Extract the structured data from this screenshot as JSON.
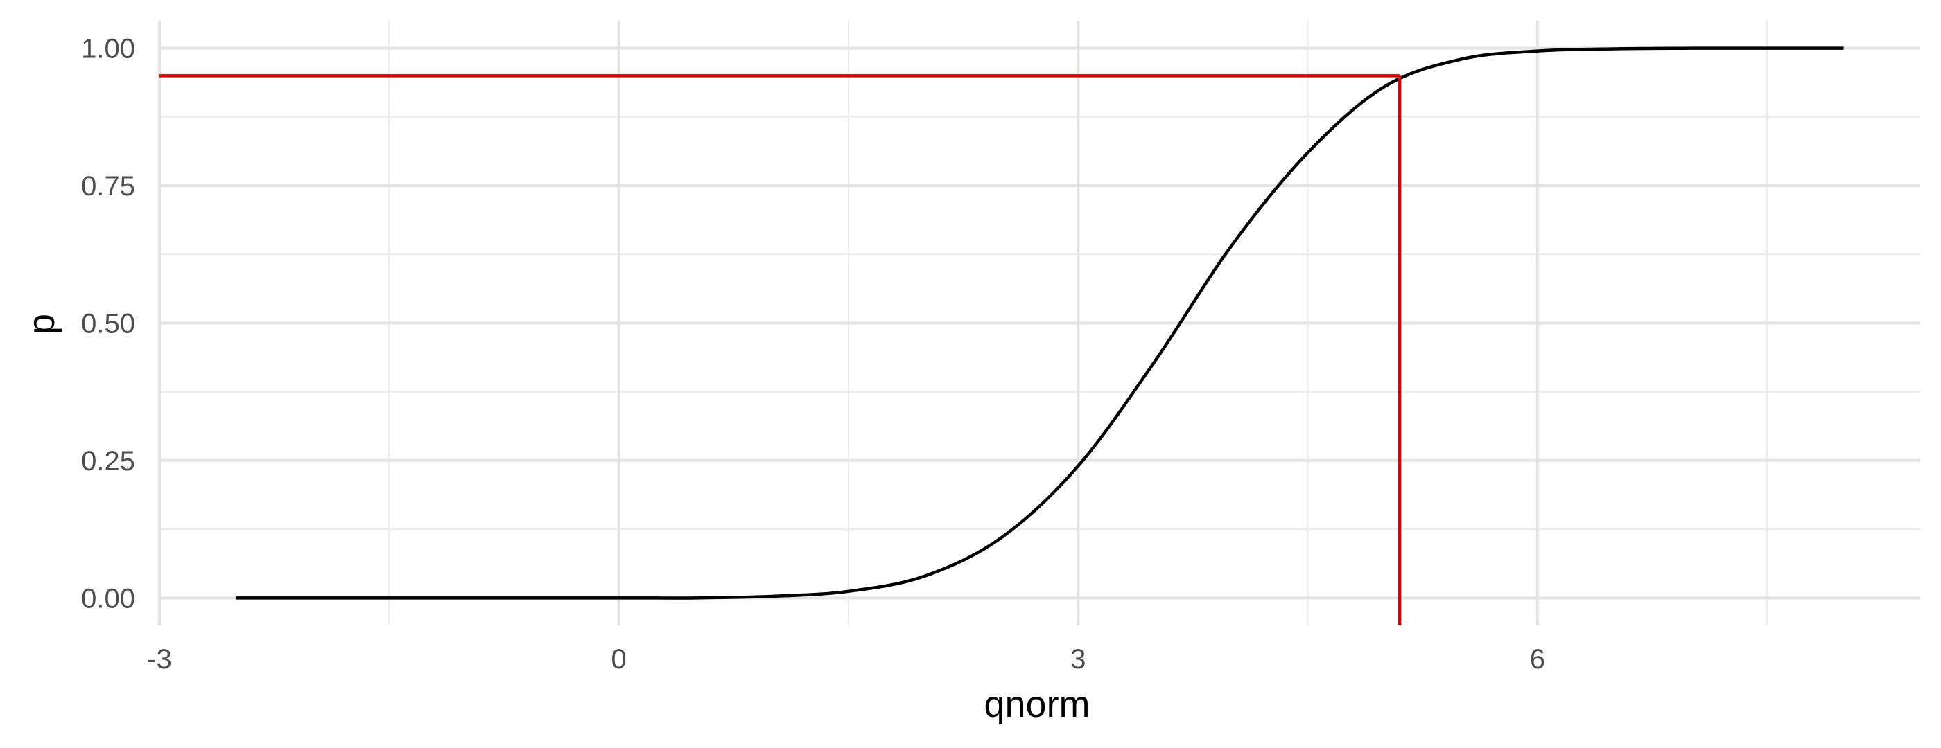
{
  "chart_data": {
    "type": "line",
    "xlabel": "qnorm",
    "ylabel": "p",
    "xlim": [
      -3,
      8.5
    ],
    "ylim": [
      -0.05,
      1.05
    ],
    "x_ticks": [
      -3,
      0,
      3,
      6
    ],
    "x_tick_labels": [
      "-3",
      "0",
      "3",
      "6"
    ],
    "y_ticks": [
      0,
      0.25,
      0.5,
      0.75,
      1
    ],
    "y_tick_labels": [
      "0.00",
      "0.25",
      "0.50",
      "0.75",
      "1.00"
    ],
    "grid": true,
    "series": [
      {
        "x": [
          -2.5,
          -1.0,
          0.0,
          0.5,
          1.0,
          1.5,
          2.0,
          2.5,
          3.0,
          3.5,
          4.0,
          4.5,
          5.0,
          5.5,
          6.0,
          6.5,
          7.0,
          8.0
        ],
        "y": [
          0.0,
          0.0,
          0.0,
          0.0,
          0.003,
          0.012,
          0.04,
          0.11,
          0.24,
          0.43,
          0.64,
          0.81,
          0.93,
          0.98,
          0.995,
          0.999,
          1.0,
          1.0
        ],
        "color": "#000000"
      }
    ],
    "reference_lines": {
      "color": "#dd0000",
      "horizontal_y": 0.95,
      "vertical_x": 5.1
    }
  }
}
